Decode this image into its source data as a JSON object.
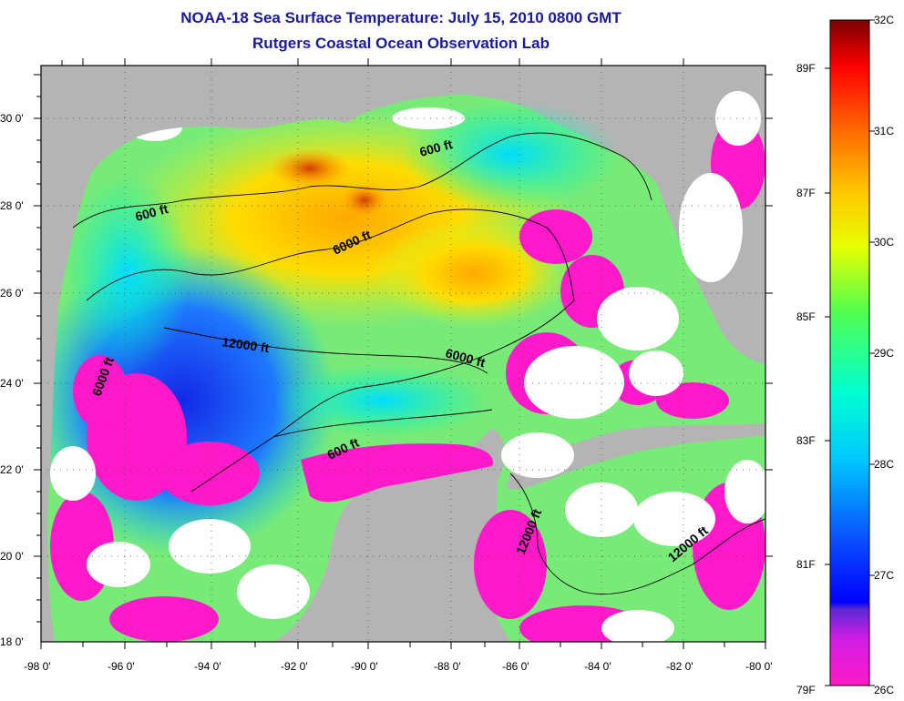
{
  "title": "NOAA-18 Sea Surface Temperature:  July 15, 2010 0800 GMT",
  "subtitle": "Rutgers Coastal Ocean Observation Lab",
  "map": {
    "lon_range": [
      -98,
      -80
    ],
    "lat_range": [
      18,
      31
    ],
    "lat_ticks": [
      "30 0'",
      "28 0'",
      "26 0'",
      "24 0'",
      "22 0'",
      "20 0'",
      "18 0'"
    ],
    "lon_ticks": [
      "-98 0'",
      "-96 0'",
      "-94 0'",
      "-92 0'",
      "-90 0'",
      "-88 0'",
      "-86 0'",
      "-84 0'",
      "-82 0'",
      "-80 0'"
    ],
    "contour_labels": [
      "600 ft",
      "600 ft",
      "6000 ft",
      "12000 ft",
      "6000 ft",
      "6000 ft",
      "600 ft",
      "12000 ft",
      "12000 ft"
    ],
    "colors": {
      "land": "#b4b4b4",
      "cloud": "#ffffff",
      "frame": "#000000"
    }
  },
  "colorbar": {
    "celsius_labels": [
      "32C",
      "31C",
      "30C",
      "29C",
      "28C",
      "27C",
      "26C"
    ],
    "fahrenheit_labels": [
      "89F",
      "87F",
      "85F",
      "83F",
      "81F",
      "79F"
    ],
    "range_c": [
      26,
      32
    ]
  }
}
